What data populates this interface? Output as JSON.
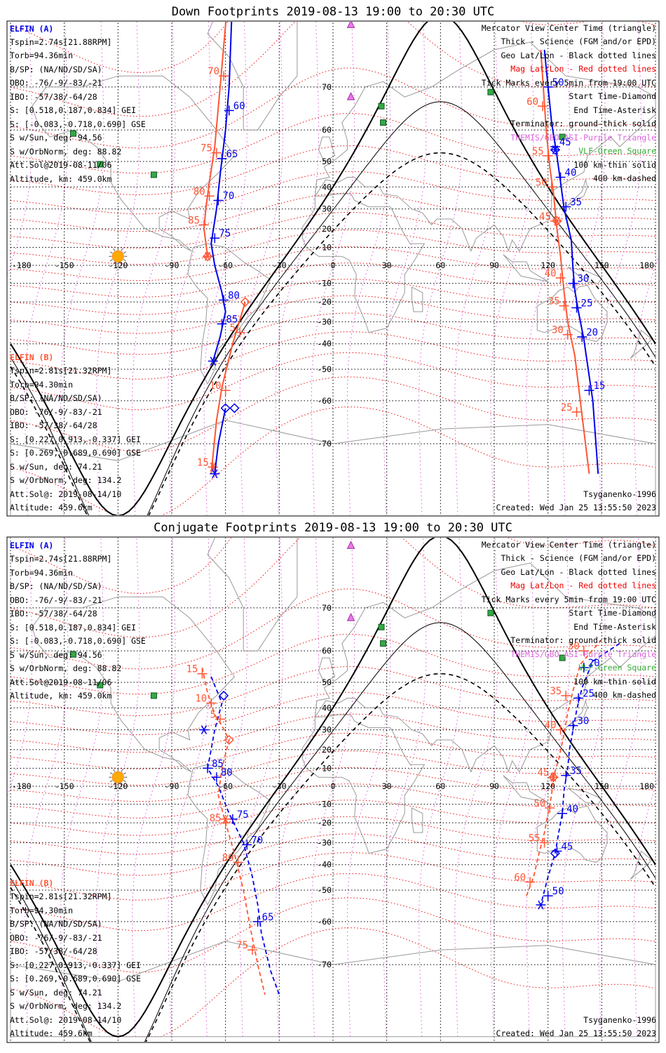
{
  "panels": [
    {
      "id": "down",
      "title": "Down Footprints 2019-08-13 19:00 to 20:30 UTC",
      "elfin_a": {
        "name": "ELFIN (A)",
        "lines": [
          "Tspin=2.74s[21.88RPM]",
          "Torb=94.36min",
          "B/SP: (NA/ND/SD/SA)",
          "OBO: -76/-9/-83/-21",
          "IBO: -57/38/-64/28",
          "S: [0.518,0.187,0.834] GEI",
          "S: [-0.083,-0.718,0.690] GSE",
          "S w/Sun, deg: 94.56",
          "S w/OrbNorm, deg: 88.82",
          "Att.Sol@2019-08-11/06",
          "Altitude, km: 459.0km"
        ]
      },
      "elfin_b": {
        "name": "ELFIN (B)",
        "lines": [
          "Tspin=2.81s[21.32RPM]",
          "Torb=94.30min",
          "B/SP: (NA/ND/SD/SA)",
          "OBO: -76/-9/-83/-21",
          "IBO: -57/38/-64/28",
          "S: [0.227,0.913,-0.337] GEI",
          "S: [0.269,-0.689,0.690] GSE",
          "S w/Sun, deg: 74.21",
          "S w/OrbNorm, deg: 134.2",
          "Att.Sol@: 2019-08-14/10",
          "Altitude: 459.6km"
        ]
      },
      "legend": [
        "Mercator View Center Time (triangle)",
        "Thick - Science (FGM and/or EPD)",
        "Geo Lat/Lon - Black dotted lines",
        "Mag Lat/Lon - Red dotted lines",
        "Tick Marks every 5min from 19:00 UTC",
        "Start Time-Diamond",
        "End Time-Asterisk",
        "Terminator: ground-thick solid",
        "THEMIS/GBO ASI-Purple Triangle",
        "VLF-Green Square",
        "100 km-thin solid",
        "400 km-dashed"
      ],
      "model": "Tsyganenko-1996",
      "created": "Created: Wed Jan 25 13:55:50 2023"
    },
    {
      "id": "conj",
      "title": "Conjugate Footprints 2019-08-13 19:00 to 20:30 UTC",
      "elfin_a": {
        "name": "ELFIN (A)",
        "lines": [
          "Tspin=2.74s[21.88RPM]",
          "Torb=94.36min",
          "B/SP: (NA/ND/SD/SA)",
          "OBO: -76/-9/-83/-21",
          "IBO: -57/38/-64/28",
          "S: [0.518,0.187,0.834] GEI",
          "S: [-0.083,-0.718,0.690] GSE",
          "S w/Sun, deg: 94.56",
          "S w/OrbNorm, deg: 88.82",
          "Att.Sol@2019-08-11/06",
          "Altitude, km: 459.0km"
        ]
      },
      "elfin_b": {
        "name": "ELFIN (B)",
        "lines": [
          "Tspin=2.81s[21.32RPM]",
          "Torb=94.30min",
          "B/SP: (NA/ND/SD/SA)",
          "OBO: -76/-9/-83/-21",
          "IBO: -57/38/-64/28",
          "S: [0.227,0.913,-0.337] GEI",
          "S: [0.269,-0.689,0.690] GSE",
          "S w/Sun, deg: 74.21",
          "S w/OrbNorm, deg: 134.2",
          "Att.Sol@: 2019-08-14/10",
          "Altitude: 459.6km"
        ]
      },
      "legend": [
        "Mercator View Center Time (triangle)",
        "Thick - Science (FGM and/or EPD)",
        "Geo Lat/Lon - Black dotted lines",
        "Mag Lat/Lon - Red dotted lines",
        "Tick Marks every 5min from 19:00 UTC",
        "Start Time-Diamond",
        "End Time-Asterisk",
        "Terminator: ground-thick solid",
        "THEMIS/GBO ASI-Purple Triangle",
        "VLF-Green Square",
        "100 km-thin solid",
        "400 km-dashed"
      ],
      "model": "Tsyganenko-1996",
      "created": "Created: Wed Jan 25 13:55:50 2023"
    }
  ],
  "axes": {
    "lon_ticks": [
      "-180",
      "-150",
      "-120",
      "-90",
      "-60",
      "-30",
      "0",
      "30",
      "60",
      "90",
      "120",
      "150",
      "180"
    ],
    "lat_ticks": [
      "70",
      "60",
      "50",
      "40",
      "30",
      "20",
      "10",
      "-10",
      "-20",
      "-30",
      "-40",
      "-50",
      "-60",
      "-70"
    ]
  },
  "markers": {
    "sun": {
      "lon": -120,
      "lat": 5
    },
    "asi_triangles": [
      {
        "lon": 10,
        "lat": 79
      },
      {
        "lon": 10,
        "lat": 68
      }
    ],
    "vlf_squares": [
      {
        "lon": -145,
        "lat": 59
      },
      {
        "lon": -130,
        "lat": 49
      },
      {
        "lon": -100,
        "lat": 45
      },
      {
        "lon": 27,
        "lat": 66
      },
      {
        "lon": 28,
        "lat": 62
      },
      {
        "lon": 88,
        "lat": 69
      },
      {
        "lon": 128,
        "lat": 58
      }
    ]
  },
  "tracks": {
    "down": {
      "a": {
        "color": "#0000ee",
        "points": [
          [
            -55,
            85
          ],
          [
            -58,
            70
          ],
          [
            -60,
            60
          ],
          [
            -63,
            45
          ],
          [
            -65,
            30
          ],
          [
            -68,
            12
          ],
          [
            -66,
            0
          ],
          [
            -62,
            -15
          ],
          [
            -60,
            -25
          ],
          [
            -63,
            -37
          ],
          [
            -67,
            -47
          ]
        ],
        "ticks": [
          {
            "lon": -58,
            "lat": 65,
            "label": "60"
          },
          {
            "lon": -62,
            "lat": 51,
            "label": "65"
          },
          {
            "lon": -64,
            "lat": 34,
            "label": "70"
          },
          {
            "lon": -66,
            "lat": 15,
            "label": "75"
          },
          {
            "lon": -61,
            "lat": -19,
            "label": "80"
          },
          {
            "lon": -62,
            "lat": -31,
            "label": "85"
          }
        ],
        "start": {
          "lon": -55,
          "lat": -62
        },
        "end": {
          "lon": -67,
          "lat": -47
        }
      },
      "b": {
        "color": "#ff5533",
        "points": [
          [
            -56,
            85
          ],
          [
            -63,
            70
          ],
          [
            -66,
            55
          ],
          [
            -69,
            42
          ],
          [
            -71,
            30
          ],
          [
            -72,
            20
          ],
          [
            -70,
            5
          ]
        ],
        "ticks": [
          {
            "lon": -61,
            "lat": 72,
            "label": "70"
          },
          {
            "lon": -65,
            "lat": 53,
            "label": "75"
          },
          {
            "lon": -69,
            "lat": 36,
            "label": "80"
          },
          {
            "lon": -72,
            "lat": 22,
            "label": "85"
          }
        ],
        "start": {
          "lon": -70,
          "lat": 5
        },
        "end": {
          "lon": -70,
          "lat": 5
        }
      },
      "b2": {
        "color": "#ff5533",
        "points": [
          [
            -49,
            -20
          ],
          [
            -56,
            -40
          ],
          [
            -62,
            -56
          ],
          [
            -65,
            -65
          ],
          [
            -68,
            -75
          ]
        ],
        "ticks": [
          {
            "lon": -52,
            "lat": -35,
            "label": "5"
          },
          {
            "lon": -60,
            "lat": -57,
            "label": "10"
          },
          {
            "lon": -67,
            "lat": -74,
            "label": "15"
          }
        ],
        "start": {
          "lon": -49,
          "lat": -20
        },
        "end": {
          "lon": -67,
          "lat": -74
        }
      },
      "a2": {
        "color": "#0000ee",
        "points": [
          [
            -60,
            -62
          ],
          [
            -64,
            -70
          ],
          [
            -66,
            -75
          ]
        ],
        "ticks": [],
        "start": {
          "lon": -60,
          "lat": -62
        },
        "end": {
          "lon": -66,
          "lat": -75
        }
      },
      "east_a": {
        "color": "#0000ee",
        "points": [
          [
            118,
            76
          ],
          [
            122,
            62
          ],
          [
            125,
            52
          ],
          [
            127,
            42
          ],
          [
            129,
            30
          ],
          [
            133,
            14
          ],
          [
            134,
            -2
          ],
          [
            135,
            -14
          ],
          [
            137,
            -25
          ],
          [
            140,
            -38
          ],
          [
            142,
            -48
          ],
          [
            145,
            -60
          ],
          [
            148,
            -75
          ]
        ],
        "ticks": [
          {
            "lon": 120,
            "lat": 70,
            "label": "50"
          },
          {
            "lon": 124,
            "lat": 55,
            "label": "45"
          },
          {
            "lon": 127,
            "lat": 44,
            "label": "40"
          },
          {
            "lon": 130,
            "lat": 31,
            "label": "35"
          },
          {
            "lon": 134,
            "lat": -10,
            "label": "30"
          },
          {
            "lon": 136,
            "lat": -23,
            "label": "25"
          },
          {
            "lon": 139,
            "lat": -37,
            "label": "20"
          },
          {
            "lon": 143,
            "lat": -57,
            "label": "15"
          }
        ],
        "start": {
          "lon": 124,
          "lat": 54
        },
        "end": {
          "lon": 124,
          "lat": 54
        }
      },
      "east_b": {
        "color": "#ff5533",
        "points": [
          [
            116,
            76
          ],
          [
            119,
            60
          ],
          [
            121,
            48
          ],
          [
            123,
            38
          ],
          [
            125,
            20
          ],
          [
            127,
            5
          ],
          [
            129,
            -15
          ],
          [
            131,
            -30
          ],
          [
            135,
            -45
          ],
          [
            138,
            -60
          ],
          [
            143,
            -75
          ]
        ],
        "ticks": [
          {
            "lon": 117,
            "lat": 66,
            "label": "60"
          },
          {
            "lon": 120,
            "lat": 52,
            "label": "55"
          },
          {
            "lon": 122,
            "lat": 40,
            "label": "50"
          },
          {
            "lon": 124,
            "lat": 24,
            "label": "45"
          },
          {
            "lon": 127,
            "lat": -7,
            "label": "40"
          },
          {
            "lon": 129,
            "lat": -22,
            "label": "35"
          },
          {
            "lon": 131,
            "lat": -36,
            "label": "30"
          },
          {
            "lon": 136,
            "lat": -63,
            "label": "25"
          }
        ],
        "start": {
          "lon": 125,
          "lat": 24
        },
        "end": {
          "lon": 125,
          "lat": 24
        }
      }
    },
    "conj": {
      "a": {
        "color": "#0000ee",
        "points": [
          [
            -68,
            52
          ],
          [
            -62,
            42
          ],
          [
            -66,
            30
          ],
          [
            -68,
            20
          ],
          [
            -70,
            10
          ],
          [
            -64,
            0
          ],
          [
            -58,
            -15
          ],
          [
            -50,
            -30
          ],
          [
            -45,
            -45
          ],
          [
            -42,
            -55
          ],
          [
            -40,
            -63
          ],
          [
            -35,
            -71
          ],
          [
            -30,
            -75
          ]
        ],
        "ticks": [
          {
            "lon": -70,
            "lat": 10,
            "label": "85"
          },
          {
            "lon": -65,
            "lat": 5,
            "label": "80"
          },
          {
            "lon": -56,
            "lat": -18,
            "label": "75"
          },
          {
            "lon": -48,
            "lat": -31,
            "label": "70"
          },
          {
            "lon": -42,
            "lat": -60,
            "label": "65"
          }
        ],
        "start": {
          "lon": -61,
          "lat": 45
        },
        "end": {
          "lon": -72,
          "lat": 30
        }
      },
      "b": {
        "color": "#ff5533",
        "points": [
          [
            -73,
            55
          ],
          [
            -70,
            46
          ],
          [
            -66,
            37
          ],
          [
            -62,
            32
          ],
          [
            -58,
            25
          ],
          [
            -62,
            10
          ],
          [
            -64,
            -5
          ],
          [
            -60,
            -20
          ],
          [
            -55,
            -35
          ],
          [
            -50,
            -50
          ],
          [
            -46,
            -62
          ],
          [
            -42,
            -70
          ],
          [
            -38,
            -75
          ]
        ],
        "ticks": [
          {
            "lon": -73,
            "lat": 53,
            "label": "15"
          },
          {
            "lon": -68,
            "lat": 42,
            "label": "10"
          },
          {
            "lon": -63,
            "lat": 35,
            "label": "5"
          },
          {
            "lon": -60,
            "lat": -20,
            "label": "85"
          },
          {
            "lon": -53,
            "lat": -39,
            "label": "80"
          },
          {
            "lon": -45,
            "lat": -67,
            "label": "75"
          }
        ],
        "start": {
          "lon": -58,
          "lat": 25
        },
        "end": {
          "lon": -60,
          "lat": -18
        }
      },
      "east_a": {
        "color": "#0000ee",
        "points": [
          [
            160,
            62
          ],
          [
            145,
            57
          ],
          [
            139,
            48
          ],
          [
            136,
            39
          ],
          [
            134,
            30
          ],
          [
            132,
            20
          ],
          [
            131,
            10
          ],
          [
            129,
            -2
          ],
          [
            128,
            -15
          ],
          [
            126,
            -25
          ],
          [
            124,
            -35
          ],
          [
            120,
            -45
          ],
          [
            116,
            -55
          ]
        ],
        "ticks": [
          {
            "lon": 140,
            "lat": 55,
            "label": "20"
          },
          {
            "lon": 137,
            "lat": 44,
            "label": "25"
          },
          {
            "lon": 134,
            "lat": 32,
            "label": "30"
          },
          {
            "lon": 130,
            "lat": 6,
            "label": "35"
          },
          {
            "lon": 128,
            "lat": -15,
            "label": "40"
          },
          {
            "lon": 125,
            "lat": -34,
            "label": "45"
          },
          {
            "lon": 120,
            "lat": -52,
            "label": "50"
          }
        ],
        "start": {
          "lon": 124,
          "lat": -35
        },
        "end": {
          "lon": 116,
          "lat": -55
        }
      },
      "east_b": {
        "color": "#ff5533",
        "points": [
          [
            150,
            63
          ],
          [
            138,
            56
          ],
          [
            134,
            47
          ],
          [
            131,
            38
          ],
          [
            129,
            28
          ],
          [
            126,
            15
          ],
          [
            123,
            5
          ],
          [
            122,
            -5
          ],
          [
            120,
            -15
          ],
          [
            118,
            -25
          ],
          [
            115,
            -35
          ],
          [
            112,
            -45
          ],
          [
            108,
            -52
          ]
        ],
        "ticks": [
          {
            "lon": 140,
            "lat": 60,
            "label": "30"
          },
          {
            "lon": 130,
            "lat": 45,
            "label": "35"
          },
          {
            "lon": 127,
            "lat": 30,
            "label": "40"
          },
          {
            "lon": 123,
            "lat": 5,
            "label": "45"
          },
          {
            "lon": 121,
            "lat": -12,
            "label": "50"
          },
          {
            "lon": 118,
            "lat": -30,
            "label": "55"
          },
          {
            "lon": 110,
            "lat": -47,
            "label": "60"
          }
        ],
        "start": {
          "lon": 123,
          "lat": 5
        },
        "end": {
          "lon": 123,
          "lat": 5
        }
      }
    }
  }
}
